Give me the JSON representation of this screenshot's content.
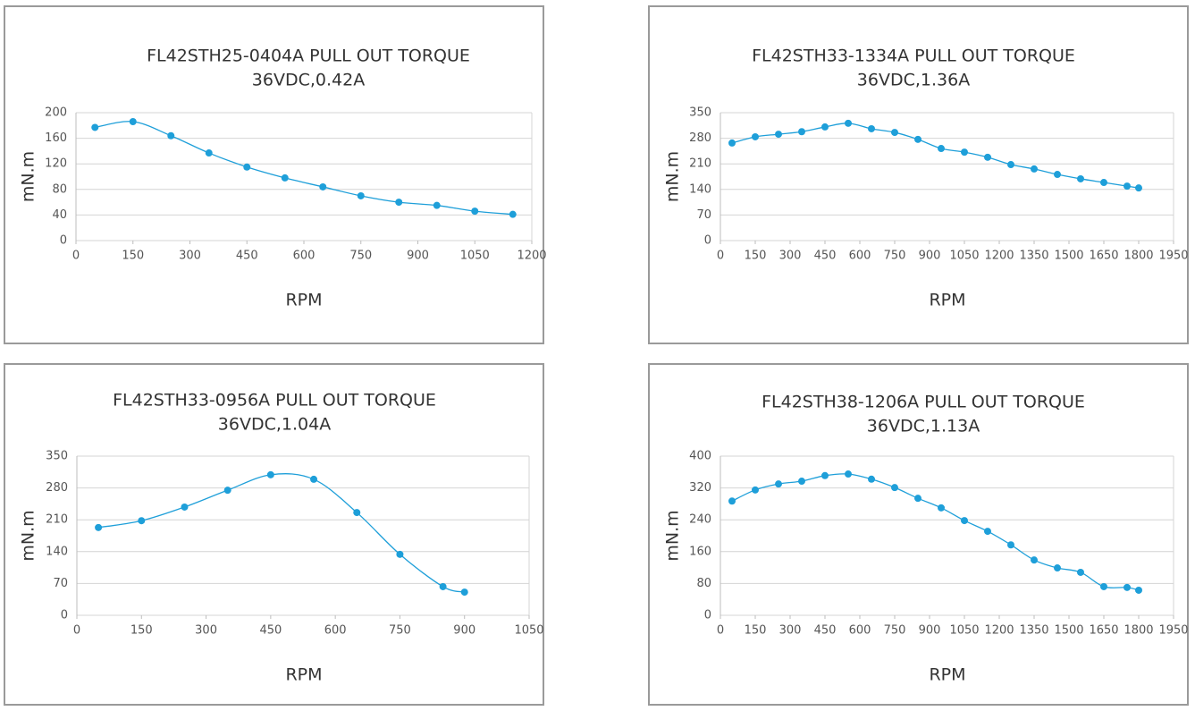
{
  "chart_data": [
    {
      "type": "line",
      "title": "FL42STH25-0404A PULL OUT TORQUE",
      "subtitle": "36VDC,0.42A",
      "x_label": "RPM",
      "y_label": "mN.m",
      "x": [
        50,
        150,
        250,
        350,
        450,
        550,
        650,
        750,
        850,
        950,
        1050,
        1150
      ],
      "values": [
        177,
        186,
        164,
        137,
        115,
        98,
        84,
        70,
        60,
        55,
        46,
        41
      ],
      "color": "#1e9fd9",
      "xlim": [
        0,
        1200
      ],
      "xticks": [
        0,
        150,
        300,
        450,
        600,
        750,
        900,
        1050,
        1200
      ],
      "ylim": [
        0,
        200
      ],
      "yticks": [
        0,
        40,
        80,
        120,
        160,
        200
      ],
      "grid": true
    },
    {
      "type": "line",
      "title": "FL42STH33-1334A PULL OUT TORQUE",
      "subtitle": "36VDC,1.36A",
      "x_label": "RPM",
      "y_label": "mN.m",
      "x": [
        50,
        150,
        250,
        350,
        450,
        550,
        650,
        750,
        850,
        950,
        1050,
        1150,
        1250,
        1350,
        1450,
        1550,
        1650,
        1750,
        1800
      ],
      "values": [
        267,
        284,
        291,
        298,
        311,
        321,
        306,
        296,
        277,
        252,
        242,
        228,
        208,
        196,
        181,
        169,
        159,
        149,
        144
      ],
      "color": "#1e9fd9",
      "xlim": [
        0,
        1950
      ],
      "xticks": [
        0,
        150,
        300,
        450,
        600,
        750,
        900,
        1050,
        1200,
        1350,
        1500,
        1650,
        1800,
        1950
      ],
      "ylim": [
        0,
        350
      ],
      "yticks": [
        0,
        70,
        140,
        210,
        280,
        350
      ],
      "grid": true
    },
    {
      "type": "line",
      "title": "FL42STH33-0956A PULL OUT TORQUE",
      "subtitle": "36VDC,1.04A",
      "x_label": "RPM",
      "y_label": "mN.m",
      "x": [
        50,
        150,
        250,
        350,
        450,
        550,
        650,
        750,
        850,
        900
      ],
      "values": [
        193,
        208,
        238,
        275,
        309,
        299,
        226,
        134,
        63,
        51
      ],
      "color": "#1e9fd9",
      "xlim": [
        0,
        1050
      ],
      "xticks": [
        0,
        150,
        300,
        450,
        600,
        750,
        900,
        1050
      ],
      "ylim": [
        0,
        350
      ],
      "yticks": [
        0,
        70,
        140,
        210,
        280,
        350
      ],
      "grid": true
    },
    {
      "type": "line",
      "title": "FL42STH38-1206A PULL OUT TORQUE",
      "subtitle": "36VDC,1.13A",
      "x_label": "RPM",
      "y_label": "mN.m",
      "x": [
        50,
        150,
        250,
        350,
        450,
        550,
        650,
        750,
        850,
        950,
        1050,
        1150,
        1250,
        1350,
        1450,
        1550,
        1650,
        1750,
        1800
      ],
      "values": [
        287,
        315,
        330,
        337,
        351,
        355,
        342,
        321,
        294,
        270,
        238,
        211,
        177,
        139,
        119,
        108,
        72,
        70,
        63
      ],
      "color": "#1e9fd9",
      "xlim": [
        0,
        1950
      ],
      "xticks": [
        0,
        150,
        300,
        450,
        600,
        750,
        900,
        1050,
        1200,
        1350,
        1500,
        1650,
        1800,
        1950
      ],
      "ylim": [
        0,
        400
      ],
      "yticks": [
        0,
        80,
        160,
        240,
        320,
        400
      ],
      "grid": true
    }
  ]
}
